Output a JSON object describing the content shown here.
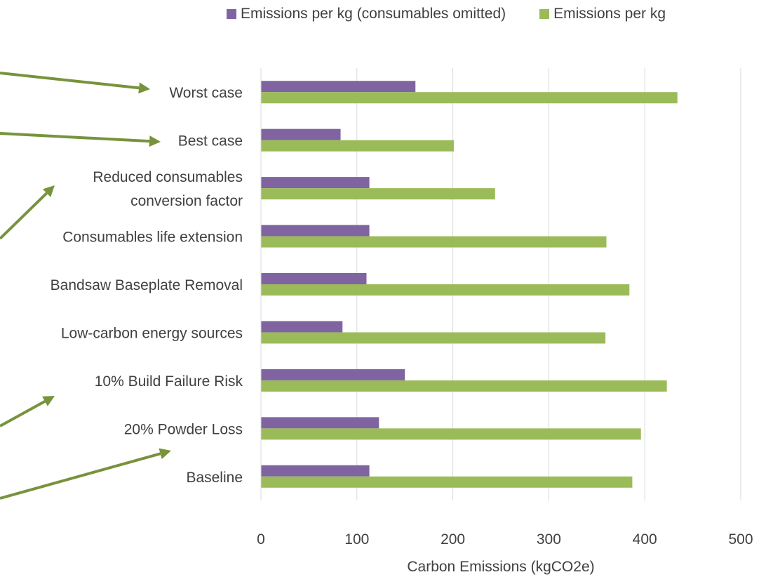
{
  "chart_data": {
    "type": "bar",
    "orientation": "horizontal",
    "title": "",
    "xlabel": "Carbon Emissions (kgCO2e)",
    "ylabel": "",
    "xlim": [
      0,
      500
    ],
    "x_ticks": [
      "0",
      "100",
      "200",
      "300",
      "400",
      "500"
    ],
    "grid": "vertical",
    "legend_position": "top",
    "categories": [
      "Worst case",
      "Best case",
      "Reduced consumables conversion factor",
      "Consumables life extension",
      "Bandsaw Baseplate Removal",
      "Low-carbon energy sources",
      "10% Build Failure Risk",
      "20% Powder Loss",
      "Baseline"
    ],
    "category_lines": [
      [
        "Worst case"
      ],
      [
        "Best case"
      ],
      [
        "Reduced consumables",
        "conversion factor"
      ],
      [
        "Consumables life extension"
      ],
      [
        "Bandsaw Baseplate Removal"
      ],
      [
        "Low-carbon energy sources"
      ],
      [
        "10% Build Failure Risk"
      ],
      [
        "20% Powder Loss"
      ],
      [
        "Baseline"
      ]
    ],
    "series": [
      {
        "name": "Emissions per kg (consumables omitted)",
        "color": "#8064a2",
        "values": [
          161,
          83,
          113,
          113,
          110,
          85,
          150,
          123,
          113
        ]
      },
      {
        "name": "Emissions per kg",
        "color": "#9bbb59",
        "values": [
          434,
          201,
          244,
          360,
          384,
          359,
          423,
          396,
          387
        ]
      }
    ],
    "annotation_arrow_color": "#77933c"
  }
}
